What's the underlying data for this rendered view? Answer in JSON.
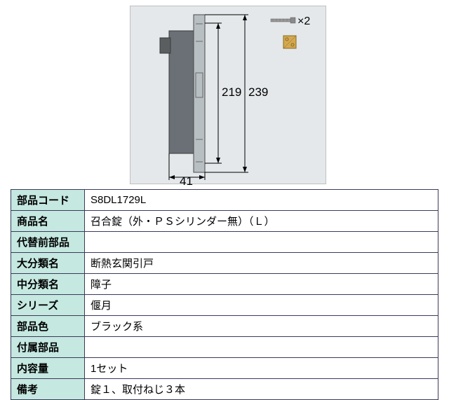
{
  "diagram": {
    "background": "#e4e8ea",
    "dim_inner_h": "219",
    "dim_outer_h": "239",
    "dim_width": "41",
    "screw_qty": "×2",
    "colors": {
      "plate_fill": "#b8bfc3",
      "plate_stroke": "#4a4a4a",
      "body_fill": "#7a7f82",
      "dim_line": "#000000",
      "screw_fill": "#9a9a9a",
      "bracket_fill": "#d4a850"
    }
  },
  "table": {
    "rows": [
      {
        "label": "部品コード",
        "value": "S8DL1729L"
      },
      {
        "label": "商品名",
        "value": "召合錠（外・ＰＳシリンダー無）（Ｌ）"
      },
      {
        "label": "代替前部品",
        "value": ""
      },
      {
        "label": "大分類名",
        "value": "断熱玄関引戸"
      },
      {
        "label": "中分類名",
        "value": "障子"
      },
      {
        "label": "シリーズ",
        "value": "偃月"
      },
      {
        "label": "部品色",
        "value": "ブラック系"
      },
      {
        "label": "付属部品",
        "value": ""
      },
      {
        "label": "内容量",
        "value": "1セット"
      },
      {
        "label": "備考",
        "value": "錠１、取付ねじ３本"
      }
    ]
  }
}
